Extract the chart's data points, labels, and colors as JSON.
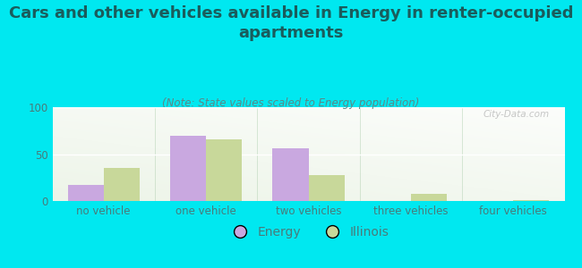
{
  "title": "Cars and other vehicles available in Energy in renter-occupied\napartments",
  "subtitle": "(Note: State values scaled to Energy population)",
  "categories": [
    "no vehicle",
    "one vehicle",
    "two vehicles",
    "three vehicles",
    "four vehicles"
  ],
  "energy_values": [
    17,
    70,
    56,
    0,
    0
  ],
  "illinois_values": [
    35,
    66,
    28,
    8,
    1
  ],
  "energy_color": "#c9a8e0",
  "illinois_color": "#c8d89a",
  "background_color": "#00e8f0",
  "ylim": [
    0,
    100
  ],
  "yticks": [
    0,
    50,
    100
  ],
  "bar_width": 0.35,
  "title_fontsize": 13,
  "subtitle_fontsize": 8.5,
  "tick_fontsize": 8.5,
  "legend_fontsize": 10,
  "title_color": "#1a5c5c",
  "tick_color": "#4a7a7a",
  "subtitle_color": "#5a8888",
  "watermark": "City-Data.com"
}
